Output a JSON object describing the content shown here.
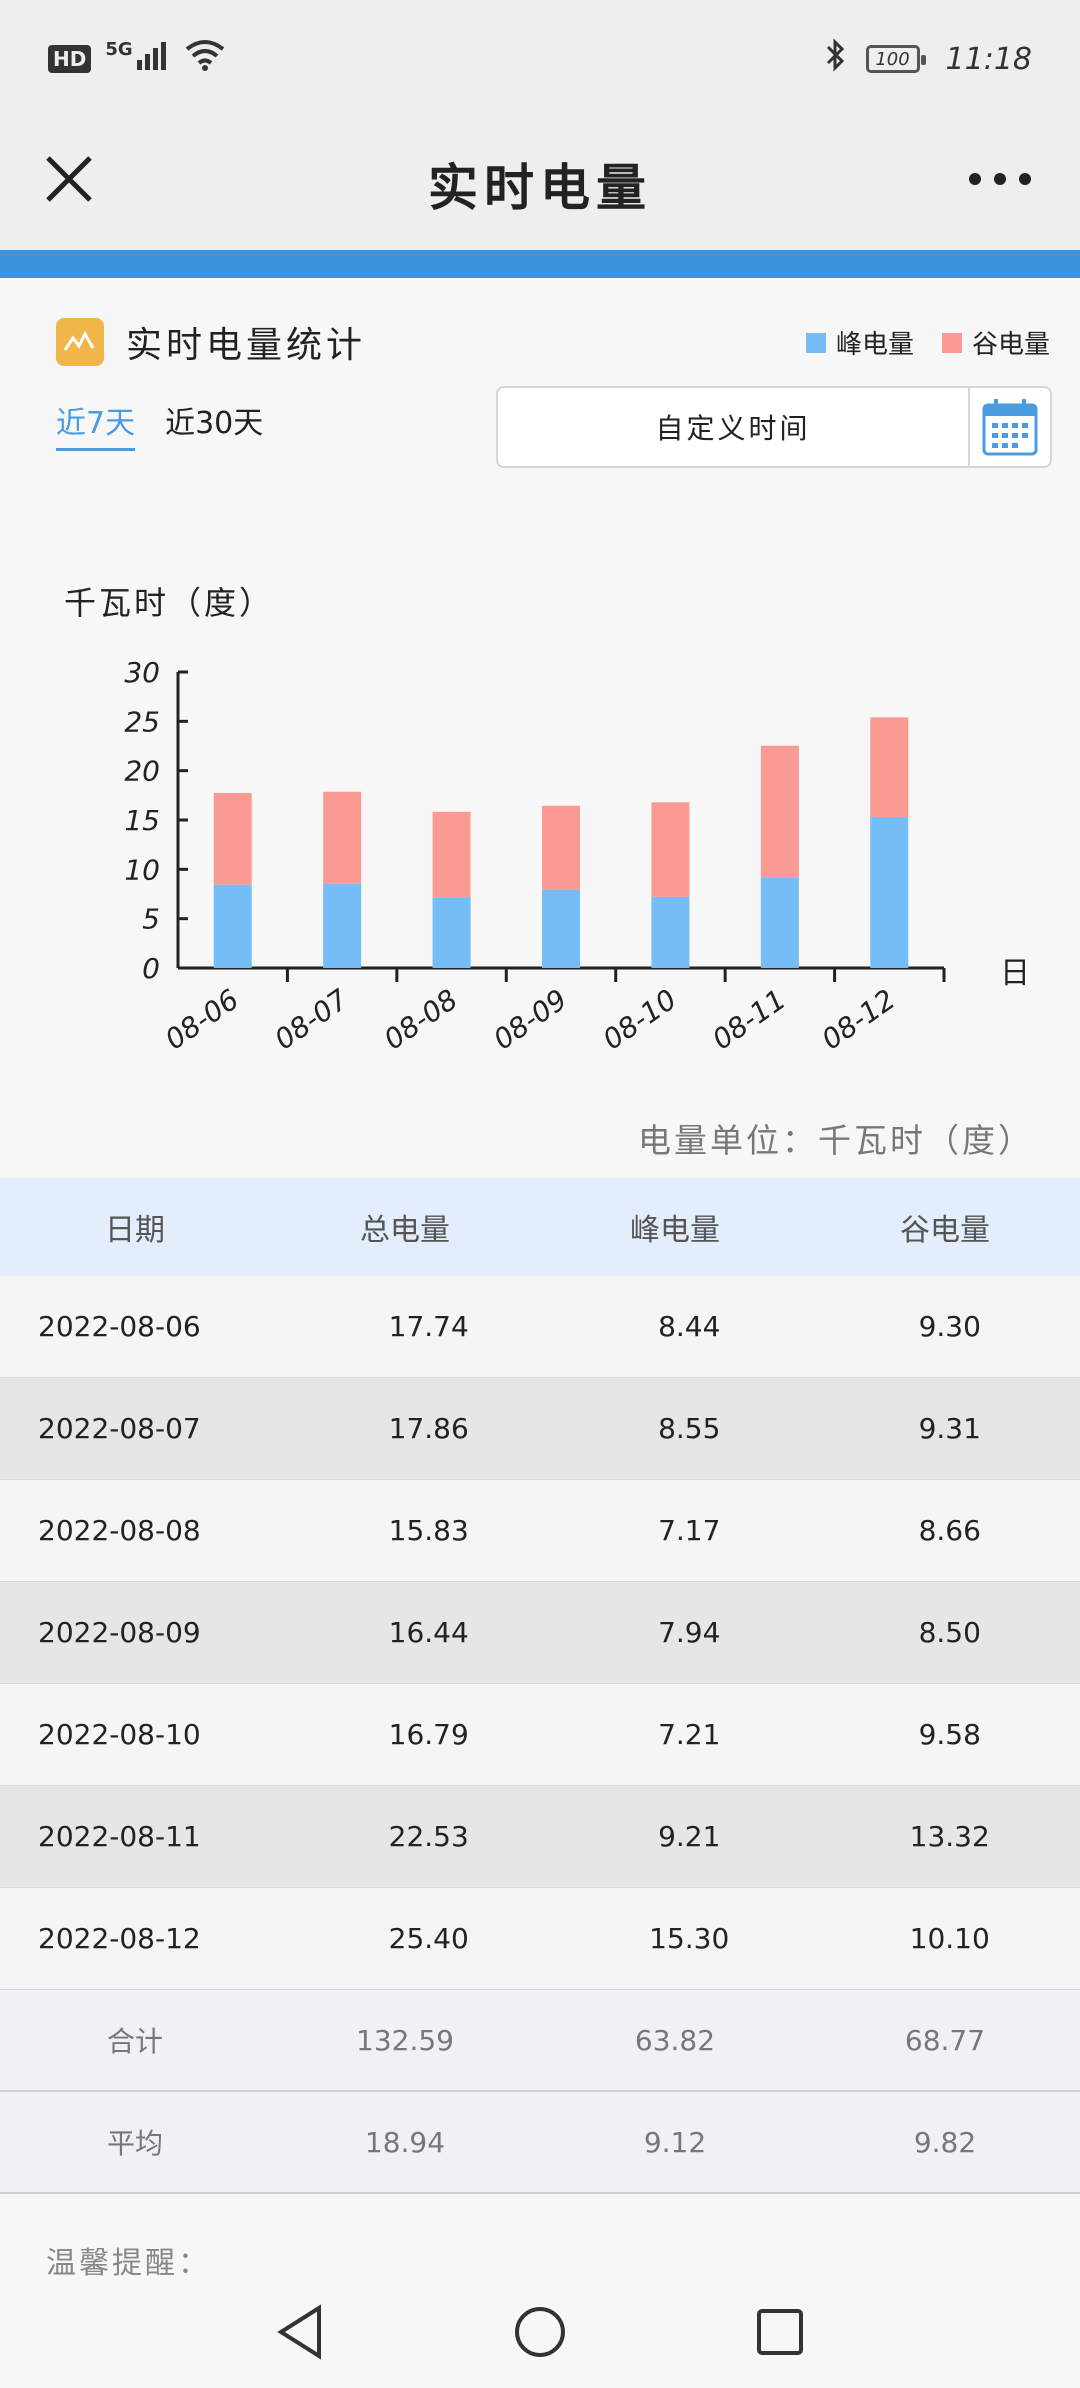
{
  "status_bar": {
    "hd": "HD",
    "network": "5G",
    "battery": "100",
    "time": "11:18"
  },
  "header": {
    "title": "实时电量"
  },
  "card": {
    "title": "实时电量统计"
  },
  "legend": [
    {
      "label": "峰电量",
      "color": "#74bdf7"
    },
    {
      "label": "谷电量",
      "color": "#fa9a92"
    }
  ],
  "range_tabs": [
    {
      "label": "近7天",
      "active": true
    },
    {
      "label": "近30天",
      "active": false
    }
  ],
  "custom_time": {
    "label": "自定义时间"
  },
  "chart_axis": {
    "ylabel": "千瓦时（度）",
    "xlabel": "日"
  },
  "unit_note": "电量单位：千瓦时（度）",
  "chart_data": {
    "type": "bar",
    "stacked": true,
    "categories": [
      "08-06",
      "08-07",
      "08-08",
      "08-09",
      "08-10",
      "08-11",
      "08-12"
    ],
    "series": [
      {
        "name": "峰电量",
        "color": "#74bdf7",
        "values": [
          8.44,
          8.55,
          7.17,
          7.94,
          7.21,
          9.21,
          15.3
        ]
      },
      {
        "name": "谷电量",
        "color": "#fa9a92",
        "values": [
          9.3,
          9.31,
          8.66,
          8.5,
          9.58,
          13.32,
          10.1
        ]
      }
    ],
    "ylim": [
      0,
      30
    ],
    "yticks": [
      0,
      5,
      10,
      15,
      20,
      25,
      30
    ]
  },
  "table": {
    "headers": [
      "日期",
      "总电量",
      "峰电量",
      "谷电量"
    ],
    "rows": [
      [
        "2022-08-06",
        "17.74",
        "8.44",
        "9.30"
      ],
      [
        "2022-08-07",
        "17.86",
        "8.55",
        "9.31"
      ],
      [
        "2022-08-08",
        "15.83",
        "7.17",
        "8.66"
      ],
      [
        "2022-08-09",
        "16.44",
        "7.94",
        "8.50"
      ],
      [
        "2022-08-10",
        "16.79",
        "7.21",
        "9.58"
      ],
      [
        "2022-08-11",
        "22.53",
        "9.21",
        "13.32"
      ],
      [
        "2022-08-12",
        "25.40",
        "15.30",
        "10.10"
      ]
    ],
    "summary": [
      [
        "合计",
        "132.59",
        "63.82",
        "68.77"
      ],
      [
        "平均",
        "18.94",
        "9.12",
        "9.82"
      ]
    ]
  },
  "tip": "温馨提醒："
}
